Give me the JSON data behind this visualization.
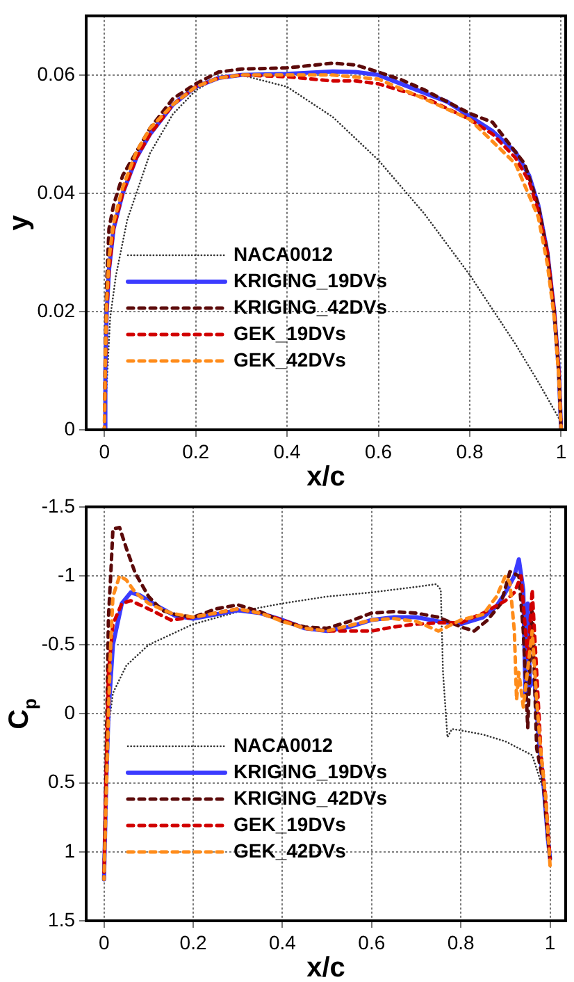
{
  "chart_data": [
    {
      "type": "line",
      "xlabel": "x/c",
      "ylabel": "y",
      "xlim": [
        -0.04,
        1.01
      ],
      "ylim": [
        0,
        0.07
      ],
      "xticks": [
        0,
        0.2,
        0.4,
        0.6,
        0.8,
        1
      ],
      "yticks": [
        0,
        0.02,
        0.04,
        0.06
      ],
      "grid": true,
      "legend": "bottom left",
      "series": [
        {
          "name": "NACA0012",
          "color": "#333333",
          "line_style": "dotted",
          "x": [
            0,
            0.0125,
            0.025,
            0.05,
            0.1,
            0.15,
            0.2,
            0.25,
            0.3,
            0.4,
            0.5,
            0.6,
            0.7,
            0.8,
            0.9,
            0.95,
            1
          ],
          "values": [
            0,
            0.0189,
            0.026,
            0.0355,
            0.0468,
            0.0534,
            0.0574,
            0.0597,
            0.06,
            0.058,
            0.0529,
            0.0456,
            0.0366,
            0.0262,
            0.0145,
            0.0081,
            0.0013
          ]
        },
        {
          "name": "KRIGING_19DVs",
          "color": "#3b3bff",
          "line_style": "solid",
          "x": [
            0,
            0.002,
            0.005,
            0.01,
            0.02,
            0.04,
            0.07,
            0.1,
            0.15,
            0.2,
            0.25,
            0.3,
            0.4,
            0.5,
            0.55,
            0.6,
            0.65,
            0.7,
            0.75,
            0.8,
            0.85,
            0.9,
            0.93,
            0.95,
            0.97,
            0.985,
            0.995,
            1
          ],
          "values": [
            0,
            0.01,
            0.02,
            0.027,
            0.034,
            0.04,
            0.046,
            0.05,
            0.055,
            0.058,
            0.0595,
            0.06,
            0.0602,
            0.0606,
            0.0605,
            0.06,
            0.0585,
            0.057,
            0.0555,
            0.053,
            0.0505,
            0.047,
            0.043,
            0.038,
            0.03,
            0.02,
            0.01,
            0
          ]
        },
        {
          "name": "KRIGING_42DVs",
          "color": "#5c0a0a",
          "line_style": "dashed",
          "x": [
            0,
            0.002,
            0.005,
            0.01,
            0.02,
            0.04,
            0.07,
            0.1,
            0.15,
            0.2,
            0.25,
            0.3,
            0.4,
            0.5,
            0.55,
            0.6,
            0.65,
            0.7,
            0.75,
            0.8,
            0.85,
            0.88,
            0.92,
            0.95,
            0.97,
            0.985,
            0.995,
            1
          ],
          "values": [
            0,
            0.015,
            0.025,
            0.034,
            0.038,
            0.043,
            0.047,
            0.051,
            0.056,
            0.0585,
            0.0605,
            0.061,
            0.0612,
            0.062,
            0.0617,
            0.0605,
            0.0592,
            0.0575,
            0.0555,
            0.0535,
            0.052,
            0.049,
            0.045,
            0.038,
            0.03,
            0.02,
            0.01,
            0
          ]
        },
        {
          "name": "GEK_19DVs",
          "color": "#d10000",
          "line_style": "dashed",
          "x": [
            0,
            0.002,
            0.005,
            0.01,
            0.02,
            0.04,
            0.07,
            0.1,
            0.15,
            0.2,
            0.25,
            0.3,
            0.4,
            0.5,
            0.55,
            0.6,
            0.7,
            0.8,
            0.85,
            0.9,
            0.93,
            0.95,
            0.97,
            0.985,
            0.995,
            1
          ],
          "values": [
            0,
            0.01,
            0.02,
            0.027,
            0.034,
            0.04,
            0.046,
            0.05,
            0.055,
            0.058,
            0.0595,
            0.06,
            0.0597,
            0.059,
            0.059,
            0.0585,
            0.0562,
            0.0525,
            0.05,
            0.046,
            0.042,
            0.037,
            0.03,
            0.02,
            0.01,
            0
          ]
        },
        {
          "name": "GEK_42DVs",
          "color": "#ff8c1a",
          "line_style": "dashed",
          "x": [
            0,
            0.002,
            0.005,
            0.01,
            0.02,
            0.04,
            0.07,
            0.1,
            0.15,
            0.2,
            0.25,
            0.3,
            0.4,
            0.5,
            0.6,
            0.7,
            0.8,
            0.9,
            0.95,
            0.97,
            0.985,
            0.995,
            1
          ],
          "values": [
            0,
            0.012,
            0.022,
            0.029,
            0.035,
            0.041,
            0.047,
            0.051,
            0.055,
            0.058,
            0.0595,
            0.06,
            0.06,
            0.06,
            0.0593,
            0.056,
            0.0525,
            0.045,
            0.036,
            0.028,
            0.019,
            0.009,
            0
          ]
        }
      ]
    },
    {
      "type": "line",
      "xlabel": "x/c",
      "ylabel": "C$_{p}$",
      "xlim": [
        -0.04,
        1.035
      ],
      "ylim": [
        1.5,
        -1.5
      ],
      "xticks": [
        0,
        0.2,
        0.4,
        0.6,
        0.8,
        1
      ],
      "yticks": [
        -1.5,
        -1,
        -0.5,
        0,
        0.5,
        1,
        1.5
      ],
      "grid": true,
      "legend": "bottom left",
      "series": [
        {
          "name": "NACA0012",
          "color": "#333333",
          "line_style": "dotted",
          "x": [
            0,
            0.005,
            0.01,
            0.02,
            0.05,
            0.1,
            0.2,
            0.3,
            0.4,
            0.5,
            0.6,
            0.7,
            0.745,
            0.755,
            0.76,
            0.77,
            0.78,
            0.8,
            0.85,
            0.9,
            0.96,
            0.99,
            1
          ],
          "values": [
            1,
            0.5,
            0.1,
            -0.15,
            -0.35,
            -0.5,
            -0.65,
            -0.74,
            -0.8,
            -0.85,
            -0.88,
            -0.92,
            -0.94,
            -0.9,
            -0.3,
            0.17,
            0.11,
            0.12,
            0.15,
            0.2,
            0.3,
            0.6,
            1.1
          ]
        },
        {
          "name": "KRIGING_19DVs",
          "color": "#3b3bff",
          "line_style": "solid",
          "x": [
            0,
            0.005,
            0.01,
            0.02,
            0.04,
            0.06,
            0.08,
            0.12,
            0.16,
            0.2,
            0.25,
            0.3,
            0.35,
            0.4,
            0.45,
            0.5,
            0.55,
            0.6,
            0.65,
            0.7,
            0.75,
            0.8,
            0.85,
            0.88,
            0.9,
            0.92,
            0.93,
            0.94,
            0.945,
            0.95,
            0.955,
            0.965,
            0.975,
            0.985,
            0.995,
            1
          ],
          "values": [
            1.2,
            0.5,
            0,
            -0.5,
            -0.8,
            -0.88,
            -0.86,
            -0.78,
            -0.71,
            -0.69,
            -0.72,
            -0.75,
            -0.73,
            -0.68,
            -0.62,
            -0.6,
            -0.63,
            -0.68,
            -0.7,
            -0.7,
            -0.67,
            -0.65,
            -0.7,
            -0.78,
            -0.88,
            -1,
            -1.12,
            -0.9,
            -0.1,
            -0.8,
            -0.2,
            -0.25,
            0.2,
            0.5,
            0.9,
            1.05
          ]
        },
        {
          "name": "KRIGING_42DVs",
          "color": "#5c0a0a",
          "line_style": "dashed",
          "x": [
            0,
            0.005,
            0.01,
            0.015,
            0.02,
            0.035,
            0.05,
            0.07,
            0.1,
            0.13,
            0.16,
            0.2,
            0.25,
            0.3,
            0.35,
            0.4,
            0.45,
            0.5,
            0.55,
            0.6,
            0.65,
            0.7,
            0.75,
            0.8,
            0.83,
            0.86,
            0.89,
            0.91,
            0.93,
            0.94,
            0.95,
            0.96,
            0.97,
            0.985,
            0.995,
            1
          ],
          "values": [
            1.2,
            0.3,
            -0.7,
            -1,
            -1.34,
            -1.35,
            -1.2,
            -1.02,
            -0.85,
            -0.75,
            -0.72,
            -0.7,
            -0.76,
            -0.79,
            -0.74,
            -0.67,
            -0.63,
            -0.62,
            -0.67,
            -0.73,
            -0.74,
            -0.73,
            -0.7,
            -0.63,
            -0.6,
            -0.68,
            -0.8,
            -1.03,
            -1,
            -0.6,
            0.1,
            -0.8,
            0.25,
            0.5,
            0.9,
            1.05
          ]
        },
        {
          "name": "GEK_19DVs",
          "color": "#d10000",
          "line_style": "dashed",
          "x": [
            0,
            0.01,
            0.02,
            0.04,
            0.06,
            0.1,
            0.15,
            0.2,
            0.25,
            0.3,
            0.35,
            0.4,
            0.45,
            0.5,
            0.55,
            0.6,
            0.65,
            0.7,
            0.75,
            0.8,
            0.85,
            0.9,
            0.92,
            0.935,
            0.95,
            0.96,
            0.97,
            0.98,
            0.99,
            1
          ],
          "values": [
            1.15,
            -0.3,
            -0.65,
            -0.8,
            -0.82,
            -0.76,
            -0.68,
            -0.7,
            -0.73,
            -0.76,
            -0.73,
            -0.68,
            -0.62,
            -0.6,
            -0.6,
            -0.6,
            -0.63,
            -0.65,
            -0.66,
            -0.66,
            -0.73,
            -0.82,
            -0.88,
            -1,
            -0.4,
            -0.9,
            -0.3,
            0.3,
            0.6,
            1.05
          ]
        },
        {
          "name": "GEK_42DVs",
          "color": "#ff8c1a",
          "line_style": "dashed",
          "x": [
            0,
            0.01,
            0.015,
            0.02,
            0.035,
            0.05,
            0.07,
            0.1,
            0.15,
            0.2,
            0.25,
            0.3,
            0.35,
            0.4,
            0.45,
            0.5,
            0.55,
            0.6,
            0.65,
            0.7,
            0.75,
            0.8,
            0.85,
            0.88,
            0.9,
            0.91,
            0.92,
            0.925,
            0.93,
            0.94,
            0.96,
            0.97,
            0.98,
            0.99,
            1
          ],
          "values": [
            1.2,
            0,
            -0.5,
            -0.85,
            -1,
            -0.97,
            -0.88,
            -0.8,
            -0.73,
            -0.7,
            -0.73,
            -0.76,
            -0.73,
            -0.67,
            -0.62,
            -0.6,
            -0.64,
            -0.68,
            -0.69,
            -0.67,
            -0.6,
            -0.68,
            -0.72,
            -0.85,
            -1,
            -0.95,
            -0.6,
            -0.1,
            -0.3,
            -0.05,
            -0.6,
            -0.1,
            0.3,
            0.6,
            1.1
          ]
        }
      ]
    }
  ]
}
